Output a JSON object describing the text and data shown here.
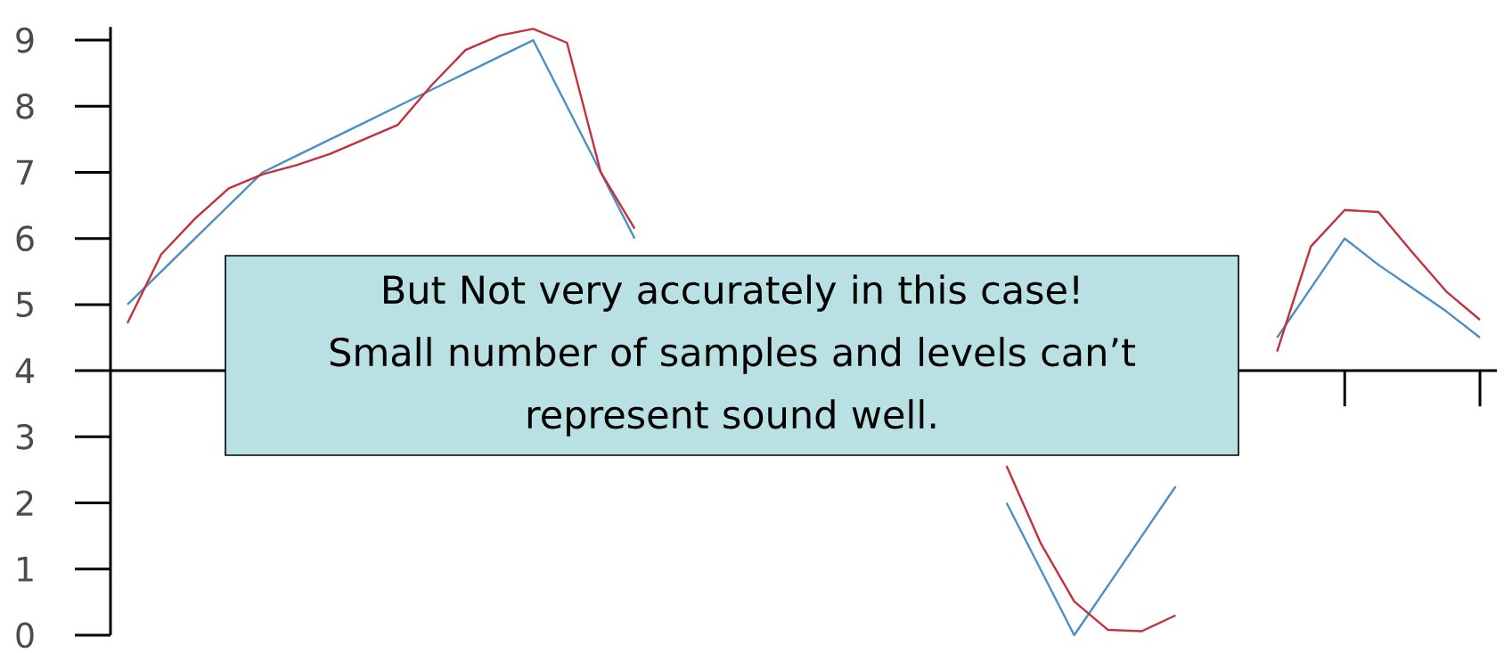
{
  "chart_data": {
    "type": "line",
    "categories": [
      null,
      null,
      null,
      null,
      null,
      null,
      null,
      null,
      null,
      null,
      null,
      null,
      null,
      null,
      null,
      null,
      null,
      null,
      null,
      null,
      null,
      null,
      null,
      null,
      null,
      null,
      null,
      null,
      null,
      null,
      null,
      null,
      null,
      null,
      null,
      null,
      null,
      null,
      null,
      null,
      null
    ],
    "ylim": [
      0,
      9.2
    ],
    "yticks": [
      0,
      1,
      2,
      3,
      4,
      5,
      6,
      7,
      8,
      9
    ],
    "tick_labels": "y",
    "marker": "none",
    "series": [
      {
        "color": "#4a8fc6",
        "values": [
          5,
          5.5,
          6,
          6.5,
          7,
          7.25,
          7.5,
          7.75,
          8,
          8.25,
          8.5,
          8.75,
          9,
          8,
          7,
          6,
          null,
          null,
          null,
          null,
          null,
          null,
          null,
          null,
          null,
          null,
          2,
          1,
          0,
          0.75,
          1.5,
          2.25,
          null,
          null,
          4.5,
          5.25,
          6,
          5.6,
          5.25,
          4.9,
          4.5
        ]
      },
      {
        "color": "#c4303c",
        "values": [
          4.72,
          5.76,
          6.3,
          6.76,
          6.97,
          7.11,
          7.28,
          7.5,
          7.72,
          8.32,
          8.85,
          9.07,
          9.17,
          8.96,
          7.0,
          6.15,
          null,
          null,
          null,
          null,
          null,
          null,
          null,
          null,
          null,
          null,
          2.56,
          1.4,
          0.51,
          0.08,
          0.06,
          0.3,
          null,
          null,
          4.29,
          5.88,
          6.43,
          6.4,
          5.79,
          5.2,
          4.77
        ]
      }
    ],
    "annotations": [
      "But Not very accurately in this case!",
      "Small number of samples and levels can’t",
      "represent sound well."
    ]
  }
}
